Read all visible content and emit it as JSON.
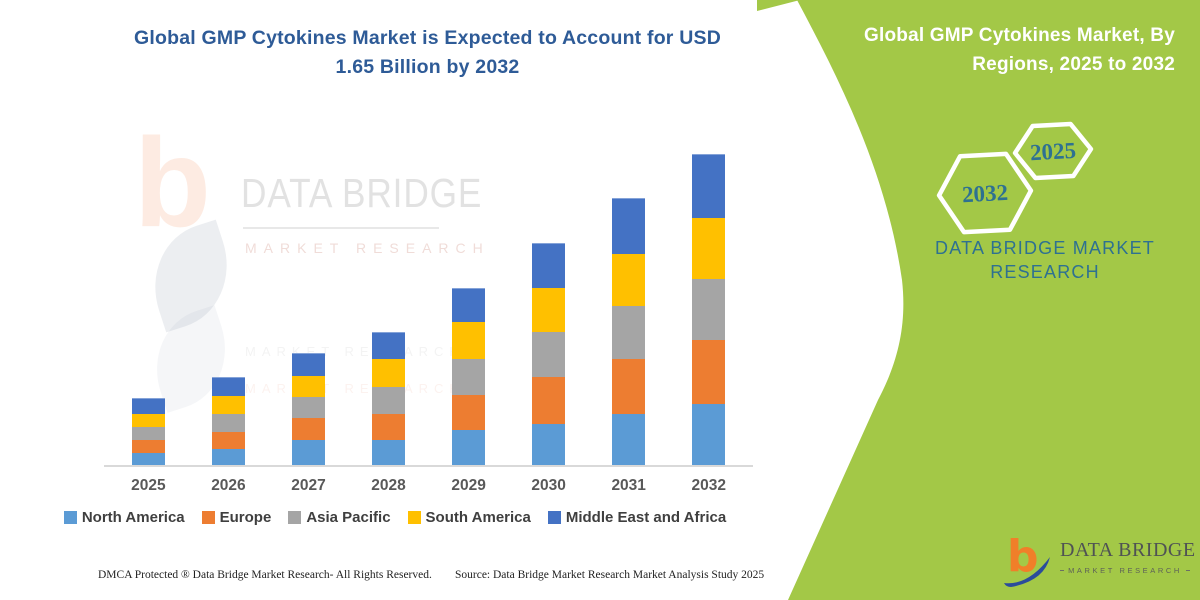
{
  "chart": {
    "title_line1": "Global GMP Cytokines Market is Expected to Account for USD",
    "title_line2": "1.65 Billion by 2032",
    "title_color": "#2E5B97"
  },
  "chart_data": {
    "type": "bar",
    "stacked": true,
    "title": "Global GMP Cytokines Market is Expected to Account for USD 1.65 Billion by 2032",
    "unit": "USD billion",
    "categories": [
      "2025",
      "2026",
      "2027",
      "2028",
      "2029",
      "2030",
      "2031",
      "2032"
    ],
    "series": [
      {
        "name": "North America",
        "color": "#5B9BD5",
        "values": [
          0.072,
          0.094,
          0.141,
          0.141,
          0.194,
          0.229,
          0.282,
          0.332
        ]
      },
      {
        "name": "Europe",
        "color": "#ED7D31",
        "values": [
          0.069,
          0.093,
          0.116,
          0.141,
          0.185,
          0.247,
          0.288,
          0.338
        ]
      },
      {
        "name": "Asia Pacific",
        "color": "#A5A5A5",
        "values": [
          0.072,
          0.092,
          0.113,
          0.143,
          0.194,
          0.238,
          0.283,
          0.323
        ]
      },
      {
        "name": "South America",
        "color": "#FFC000",
        "values": [
          0.069,
          0.097,
          0.111,
          0.145,
          0.193,
          0.231,
          0.275,
          0.326
        ]
      },
      {
        "name": "Middle East and Africa",
        "color": "#4472C4",
        "values": [
          0.076,
          0.097,
          0.115,
          0.141,
          0.178,
          0.236,
          0.288,
          0.332
        ]
      }
    ],
    "totals_estimated": [
      0.36,
      0.47,
      0.6,
      0.71,
      0.94,
      1.18,
      1.42,
      1.65
    ],
    "xlabel": "",
    "ylabel": "",
    "ylim": [
      0,
      1.75
    ],
    "gridlines": false,
    "y_axis_shown": false,
    "legend_position": "bottom",
    "axis_label_color": "#595959",
    "axis_line_color": "#D9D9D9"
  },
  "watermark": {
    "letter": "b",
    "line1": "DATA BRIDGE",
    "line2": "MARKET RESEARCH",
    "line3": "MARKET RESEARCH",
    "line4": "MARKET RESEARCH"
  },
  "sidebar": {
    "bg_color": "#A3C847",
    "title_line1": "Global GMP Cytokines Market, By",
    "title_line2": "Regions, 2025 to 2032",
    "hex_back_year": "2032",
    "hex_front_year": "2025",
    "hex_text_color": "#2E7191",
    "brand_line1": "DATA BRIDGE MARKET",
    "brand_line2": "RESEARCH",
    "brand_color": "#2E7191",
    "logo": {
      "letter": "b",
      "name": "DATA BRIDGE",
      "subtext": "MARKET RESEARCH",
      "letter_color": "#F07F29",
      "swoosh_color": "#2B4C9B"
    }
  },
  "footer": {
    "left": "DMCA Protected ® Data Bridge Market Research-  All Rights Reserved.",
    "right": "Source: Data Bridge Market Research  Market Analysis Study 2025"
  }
}
